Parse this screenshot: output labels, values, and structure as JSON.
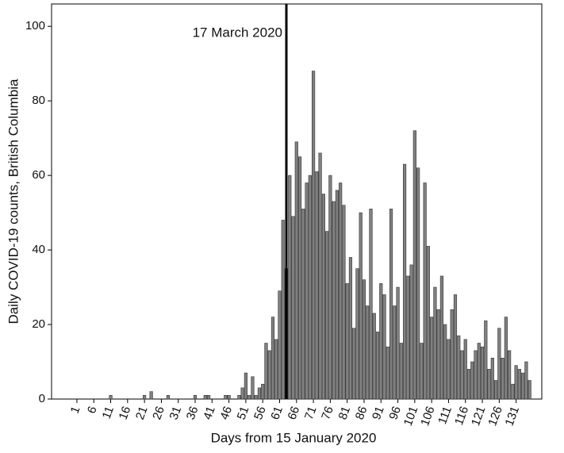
{
  "chart_data": {
    "type": "bar",
    "x_label": "Days from 15 January 2020",
    "y_label": "Daily COVID-19 counts, British Columbia",
    "annotation": {
      "x": 63,
      "label": "17 March 2020"
    },
    "x": [
      1,
      2,
      3,
      4,
      5,
      6,
      7,
      8,
      9,
      10,
      11,
      12,
      13,
      14,
      15,
      16,
      17,
      18,
      19,
      20,
      21,
      22,
      23,
      24,
      25,
      26,
      27,
      28,
      29,
      30,
      31,
      32,
      33,
      34,
      35,
      36,
      37,
      38,
      39,
      40,
      41,
      42,
      43,
      44,
      45,
      46,
      47,
      48,
      49,
      50,
      51,
      52,
      53,
      54,
      55,
      56,
      57,
      58,
      59,
      60,
      61,
      62,
      63,
      64,
      65,
      66,
      67,
      68,
      69,
      70,
      71,
      72,
      73,
      74,
      75,
      76,
      77,
      78,
      79,
      80,
      81,
      82,
      83,
      84,
      85,
      86,
      87,
      88,
      89,
      90,
      91,
      92,
      93,
      94,
      95,
      96,
      97,
      98,
      99,
      100,
      101,
      102,
      103,
      104,
      105,
      106,
      107,
      108,
      109,
      110,
      111,
      112,
      113,
      114,
      115,
      116,
      117,
      118,
      119,
      120,
      121,
      122,
      123,
      124,
      125,
      126,
      127,
      128,
      129,
      130,
      131,
      132,
      133,
      134,
      135
    ],
    "values": [
      0,
      0,
      0,
      0,
      0,
      0,
      0,
      0,
      0,
      0,
      1,
      0,
      0,
      0,
      0,
      0,
      0,
      0,
      0,
      0,
      1,
      0,
      2,
      0,
      0,
      0,
      0,
      1,
      0,
      0,
      0,
      0,
      0,
      0,
      0,
      1,
      0,
      0,
      1,
      1,
      0,
      0,
      0,
      0,
      1,
      1,
      0,
      0,
      1,
      3,
      7,
      1,
      6,
      1,
      3,
      4,
      15,
      13,
      22,
      16,
      29,
      48,
      35,
      60,
      49,
      69,
      65,
      51,
      58,
      60,
      88,
      61,
      66,
      55,
      45,
      60,
      53,
      56,
      58,
      52,
      31,
      38,
      19,
      35,
      50,
      32,
      25,
      51,
      23,
      18,
      31,
      28,
      14,
      51,
      25,
      30,
      15,
      63,
      33,
      36,
      72,
      62,
      15,
      58,
      41,
      22,
      30,
      24,
      33,
      20,
      16,
      24,
      28,
      17,
      13,
      16,
      8,
      10,
      13,
      15,
      14,
      21,
      8,
      11,
      5,
      19,
      11,
      22,
      13,
      4,
      9,
      8,
      7,
      10,
      5
    ],
    "color": "#808080",
    "xlim": [
      -6.5,
      138.6
    ],
    "xticks": [
      1,
      6,
      11,
      16,
      21,
      26,
      31,
      36,
      41,
      46,
      51,
      56,
      61,
      66,
      71,
      76,
      81,
      86,
      91,
      96,
      101,
      106,
      111,
      116,
      121,
      126,
      131
    ],
    "ylim": [
      0,
      106
    ],
    "yticks": [
      0,
      20,
      40,
      60,
      80,
      100
    ]
  }
}
